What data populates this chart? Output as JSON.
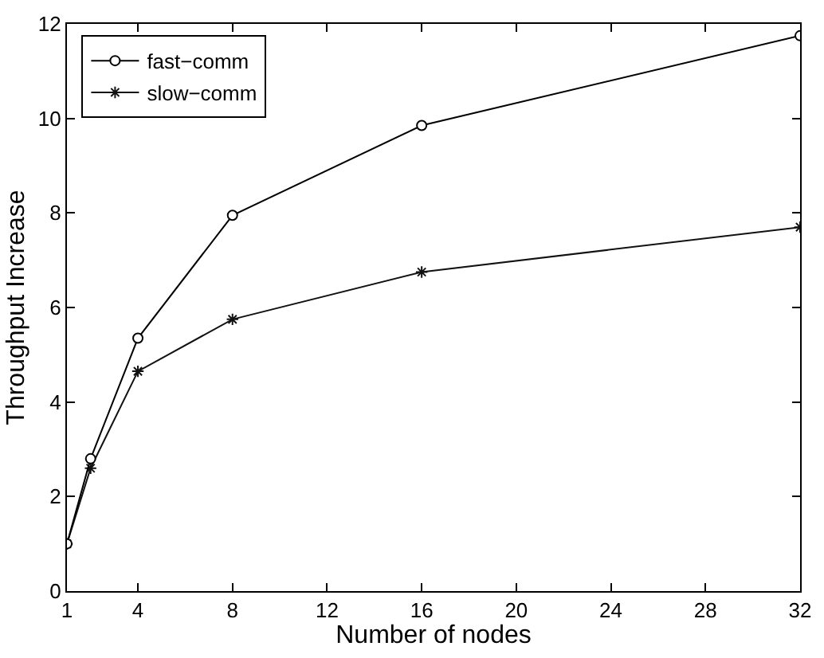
{
  "chart_data": {
    "type": "line",
    "xlabel": "Number of nodes",
    "ylabel": "Throughput Increase",
    "x": [
      1,
      2,
      4,
      8,
      16,
      32
    ],
    "series": [
      {
        "name": "fast−comm",
        "color": "#000000",
        "marker": "circle",
        "values": [
          1,
          2.8,
          5.35,
          7.95,
          9.85,
          11.75
        ]
      },
      {
        "name": "slow−comm",
        "color": "#111111",
        "marker": "cross",
        "values": [
          1,
          2.6,
          4.65,
          5.75,
          6.75,
          7.7
        ]
      }
    ],
    "xlim": [
      1,
      32
    ],
    "xticks": [
      1,
      4,
      8,
      12,
      16,
      20,
      24,
      28,
      32
    ],
    "ylim": [
      0,
      12
    ],
    "yticks": [
      0,
      2,
      4,
      6,
      8,
      10,
      12
    ],
    "grid": false,
    "legend": "top left",
    "line_style": "solid"
  }
}
